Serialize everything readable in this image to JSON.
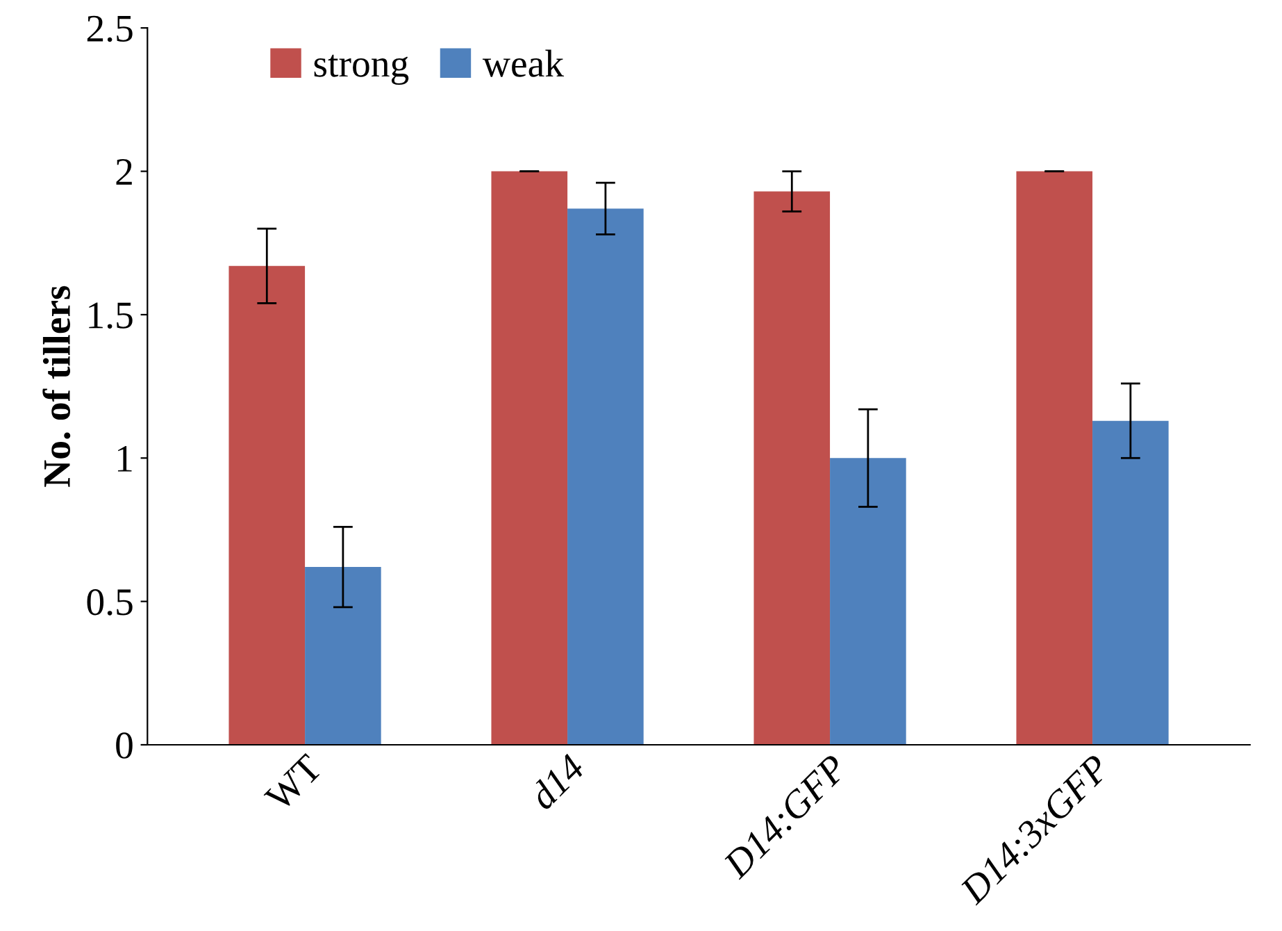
{
  "chart_data": {
    "type": "bar",
    "ylabel": "No. of tillers",
    "categories": [
      "WT",
      "d14",
      "D14:GFP",
      "D14:3xGFP"
    ],
    "series": [
      {
        "name": "strong",
        "color": "#c0504d",
        "values": [
          1.67,
          2.0,
          1.93,
          2.0
        ],
        "errors": [
          0.13,
          0,
          0.07,
          0
        ]
      },
      {
        "name": "weak",
        "color": "#4f81bd",
        "values": [
          0.62,
          1.87,
          1.0,
          1.13
        ],
        "errors": [
          0.14,
          0.09,
          0.17,
          0.13
        ]
      }
    ],
    "ylim": [
      0,
      2.5
    ],
    "yticks": [
      0,
      0.5,
      1,
      1.5,
      2,
      2.5
    ],
    "grid": false,
    "legend": "top left"
  }
}
